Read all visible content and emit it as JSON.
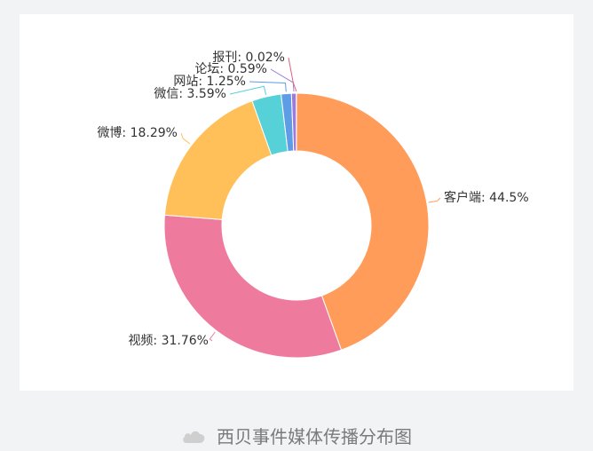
{
  "chart_data": {
    "type": "pie",
    "donut": true,
    "slices": [
      {
        "label": "客户端",
        "value": 44.5,
        "display": "44.5%",
        "color": "#ff9c5a"
      },
      {
        "label": "视频",
        "value": 31.76,
        "display": "31.76%",
        "color": "#ee7b9e"
      },
      {
        "label": "微博",
        "value": 18.29,
        "display": "18.29%",
        "color": "#ffc05a"
      },
      {
        "label": "微信",
        "value": 3.59,
        "display": "3.59%",
        "color": "#57d1d8"
      },
      {
        "label": "网站",
        "value": 1.25,
        "display": "1.25%",
        "color": "#5f9ce6"
      },
      {
        "label": "论坛",
        "value": 0.59,
        "display": "0.59%",
        "color": "#9c7ae0"
      },
      {
        "label": "报刊",
        "value": 0.02,
        "display": "0.02%",
        "color": "#e0607e"
      }
    ]
  },
  "caption": {
    "icon": "cloud-icon",
    "text": "西贝事件媒体传播分布图"
  }
}
